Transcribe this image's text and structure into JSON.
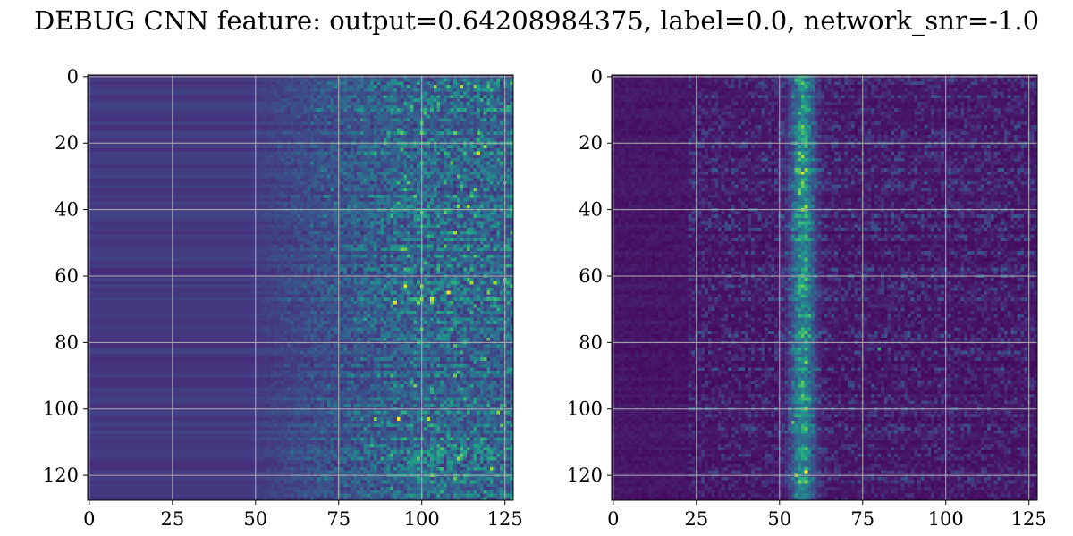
{
  "figure": {
    "title": "DEBUG CNN feature: output=0.64208984375, label=0.0, network_snr=-1.0"
  },
  "chart_data": [
    {
      "type": "heatmap",
      "title": "",
      "xlabel": "",
      "ylabel": "",
      "colormap": "viridis",
      "rows": 128,
      "cols": 128,
      "xlim": [
        -0.5,
        127.5
      ],
      "ylim": [
        127.5,
        -0.5
      ],
      "y_inverted": true,
      "grid": true,
      "xticks": [
        0,
        25,
        50,
        75,
        100,
        125
      ],
      "yticks": [
        0,
        20,
        40,
        60,
        80,
        100,
        120
      ],
      "xtick_labels": [
        "0",
        "25",
        "50",
        "75",
        "100",
        "125"
      ],
      "ytick_labels": [
        "0",
        "20",
        "40",
        "60",
        "80",
        "100",
        "120"
      ],
      "pattern": "row-wise stripes; low values for columns 0-50, rising noisy intensity from column 60 to 127",
      "hotspots": [
        {
          "row": 3,
          "col": 104,
          "value": 0.85
        },
        {
          "row": 3,
          "col": 112,
          "value": 0.9
        },
        {
          "row": 3,
          "col": 116,
          "value": 0.8
        },
        {
          "row": 14,
          "col": 100,
          "value": 0.7
        },
        {
          "row": 36,
          "col": 98,
          "value": 0.75
        },
        {
          "row": 63,
          "col": 95,
          "value": 0.95
        },
        {
          "row": 63,
          "col": 100,
          "value": 0.85
        },
        {
          "row": 65,
          "col": 108,
          "value": 1.0
        },
        {
          "row": 65,
          "col": 120,
          "value": 0.8
        },
        {
          "row": 68,
          "col": 92,
          "value": 0.95
        },
        {
          "row": 68,
          "col": 99,
          "value": 0.8
        },
        {
          "row": 93,
          "col": 98,
          "value": 0.8
        },
        {
          "row": 103,
          "col": 86,
          "value": 0.8
        },
        {
          "row": 103,
          "col": 93,
          "value": 1.0
        },
        {
          "row": 103,
          "col": 102,
          "value": 0.9
        },
        {
          "row": 121,
          "col": 110,
          "value": 0.75
        }
      ]
    },
    {
      "type": "heatmap",
      "title": "",
      "xlabel": "",
      "ylabel": "",
      "colormap": "viridis",
      "rows": 128,
      "cols": 128,
      "xlim": [
        -0.5,
        127.5
      ],
      "ylim": [
        127.5,
        -0.5
      ],
      "y_inverted": true,
      "grid": true,
      "xticks": [
        0,
        25,
        50,
        75,
        100,
        125
      ],
      "yticks": [
        0,
        20,
        40,
        60,
        80,
        100,
        120
      ],
      "xtick_labels": [
        "0",
        "25",
        "50",
        "75",
        "100",
        "125"
      ],
      "ytick_labels": [
        "0",
        "20",
        "40",
        "60",
        "80",
        "100",
        "120"
      ],
      "pattern": "mostly dark; sparse speckle across columns 25-127 with a bright vertical band around columns 53-60",
      "hotspots": [
        {
          "row": 9,
          "col": 57,
          "value": 0.7
        },
        {
          "row": 24,
          "col": 57,
          "value": 0.85
        },
        {
          "row": 28,
          "col": 55,
          "value": 0.75
        },
        {
          "row": 35,
          "col": 56,
          "value": 0.8
        },
        {
          "row": 39,
          "col": 58,
          "value": 0.85
        },
        {
          "row": 55,
          "col": 58,
          "value": 0.7
        },
        {
          "row": 82,
          "col": 80,
          "value": 0.6
        },
        {
          "row": 86,
          "col": 58,
          "value": 0.8
        },
        {
          "row": 96,
          "col": 57,
          "value": 0.75
        },
        {
          "row": 104,
          "col": 54,
          "value": 0.75
        },
        {
          "row": 119,
          "col": 58,
          "value": 1.0
        },
        {
          "row": 120,
          "col": 55,
          "value": 0.85
        },
        {
          "row": 122,
          "col": 56,
          "value": 0.8
        }
      ]
    }
  ]
}
